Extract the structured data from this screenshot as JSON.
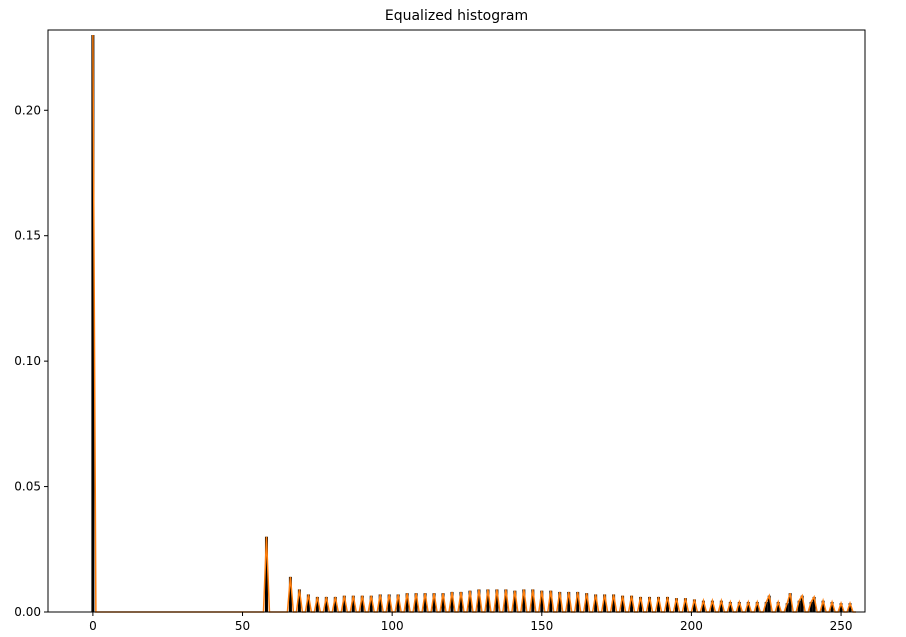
{
  "chart_data": {
    "type": "bar",
    "title": "Equalized histogram",
    "xlabel": "",
    "ylabel": "",
    "xlim": [
      -15,
      258
    ],
    "ylim": [
      0,
      0.232
    ],
    "xticks": [
      0,
      50,
      100,
      150,
      200,
      250
    ],
    "xtick_labels": [
      "0",
      "50",
      "100",
      "150",
      "200",
      "250"
    ],
    "yticks": [
      0.0,
      0.05,
      0.1,
      0.15,
      0.2
    ],
    "ytick_labels": [
      "0.00",
      "0.05",
      "0.10",
      "0.15",
      "0.20"
    ],
    "grid": false,
    "colors": {
      "bars": "#000000",
      "outline": "#ff7f0e",
      "axes": "#000000"
    },
    "series": [
      {
        "x": [
          0,
          58,
          66,
          69,
          72,
          75,
          78,
          81,
          84,
          87,
          90,
          93,
          96,
          99,
          102,
          105,
          108,
          111,
          114,
          117,
          120,
          123,
          126,
          129,
          132,
          135,
          138,
          141,
          144,
          147,
          150,
          153,
          156,
          159,
          162,
          165,
          168,
          171,
          174,
          177,
          180,
          183,
          186,
          189,
          192,
          195,
          198,
          201,
          204,
          207,
          210,
          213,
          216,
          219,
          222,
          225,
          226,
          229,
          232,
          233,
          236,
          237,
          240,
          241,
          244,
          247,
          250,
          253
        ],
        "values": [
          0.23,
          0.03,
          0.014,
          0.009,
          0.007,
          0.006,
          0.006,
          0.006,
          0.0065,
          0.0065,
          0.0065,
          0.0065,
          0.007,
          0.007,
          0.007,
          0.0075,
          0.0075,
          0.0075,
          0.0075,
          0.0075,
          0.008,
          0.008,
          0.0085,
          0.009,
          0.009,
          0.009,
          0.009,
          0.0085,
          0.009,
          0.009,
          0.0085,
          0.0085,
          0.008,
          0.008,
          0.008,
          0.0075,
          0.007,
          0.007,
          0.007,
          0.0065,
          0.0065,
          0.006,
          0.006,
          0.006,
          0.006,
          0.0055,
          0.0055,
          0.005,
          0.0045,
          0.0045,
          0.0045,
          0.004,
          0.004,
          0.004,
          0.004,
          0.004,
          0.0065,
          0.004,
          0.0035,
          0.0075,
          0.0045,
          0.0065,
          0.004,
          0.006,
          0.0045,
          0.004,
          0.0035,
          0.0035
        ]
      }
    ]
  }
}
